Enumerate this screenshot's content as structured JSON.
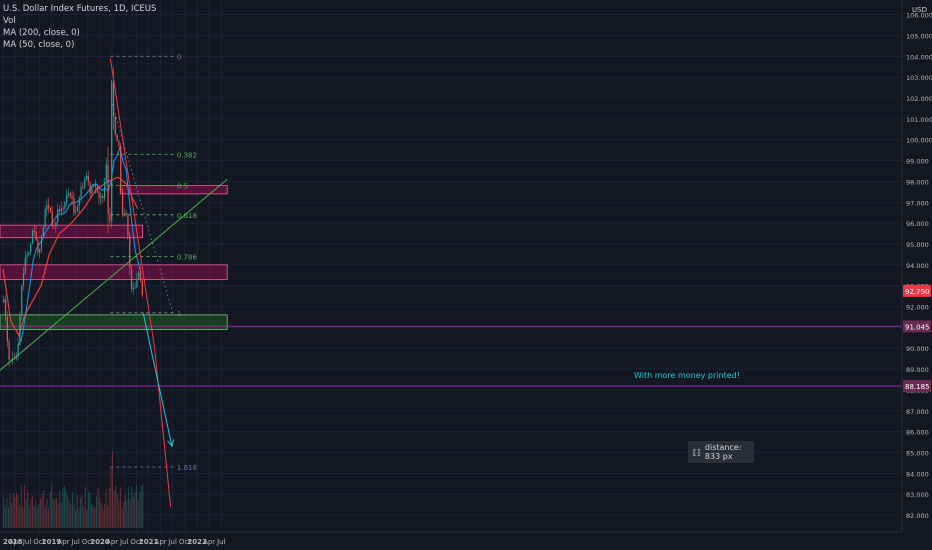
{
  "legend": {
    "title": "U.S. Dollar Index Futures, 1D, ICEUS",
    "vol": "Vol",
    "ma200": "MA (200, close, 0)",
    "ma50": "MA (50, close, 0)"
  },
  "currency_label": "USD",
  "annotation_text": "With more money printed!",
  "tooltip_text": "distance: 833 px",
  "colors": {
    "background": "#131722",
    "grid": "#1f2a44",
    "up": "#26a69a",
    "down": "#ef5350",
    "ma200": "#e53935",
    "ma50": "#2196f3",
    "red_zone": "#880e4f",
    "green_zone": "#1b5e20",
    "trend_green": "#4caf50",
    "trend_red": "#f23645",
    "projection": "#26c6da",
    "fib": "#4caf50",
    "purple": "#9c27b0"
  },
  "chart_data": {
    "type": "candlestick",
    "title": "U.S. Dollar Index Futures, 1D, ICEUS",
    "ylim": [
      81.4,
      106.4
    ],
    "y_ticks": [
      "82.000",
      "83.000",
      "84.000",
      "85.000",
      "86.000",
      "87.000",
      "88.000",
      "89.000",
      "90.000",
      "91.000",
      "92.000",
      "93.000",
      "94.000",
      "95.000",
      "96.000",
      "97.000",
      "98.000",
      "99.000",
      "100.000",
      "101.000",
      "102.000",
      "103.000",
      "104.000",
      "105.000",
      "106.000"
    ],
    "x_ticks": [
      "2018",
      "Apr",
      "Jul",
      "Oct",
      "2019",
      "Apr",
      "Jul",
      "Oct",
      "2020",
      "Apr",
      "Jul",
      "Oct",
      "2021",
      "Apr",
      "Jul",
      "Oct",
      "2022",
      "Apr",
      "Jul"
    ],
    "price_path": [
      [
        "2018-01-02",
        92.2
      ],
      [
        "2018-01-20",
        91.0
      ],
      [
        "2018-02-15",
        89.2
      ],
      [
        "2018-03-15",
        89.6
      ],
      [
        "2018-04-15",
        89.8
      ],
      [
        "2018-05-10",
        92.5
      ],
      [
        "2018-06-15",
        94.5
      ],
      [
        "2018-07-15",
        94.6
      ],
      [
        "2018-08-15",
        96.0
      ],
      [
        "2018-09-15",
        94.6
      ],
      [
        "2018-10-15",
        95.3
      ],
      [
        "2018-11-15",
        96.8
      ],
      [
        "2018-12-15",
        96.8
      ],
      [
        "2019-01-15",
        95.6
      ],
      [
        "2019-02-15",
        96.7
      ],
      [
        "2019-03-15",
        96.6
      ],
      [
        "2019-04-15",
        97.1
      ],
      [
        "2019-05-15",
        97.6
      ],
      [
        "2019-06-15",
        96.5
      ],
      [
        "2019-07-15",
        97.0
      ],
      [
        "2019-08-15",
        97.8
      ],
      [
        "2019-09-15",
        98.3
      ],
      [
        "2019-10-15",
        97.6
      ],
      [
        "2019-11-15",
        98.1
      ],
      [
        "2019-12-15",
        97.0
      ],
      [
        "2020-01-15",
        97.3
      ],
      [
        "2020-02-15",
        99.0
      ],
      [
        "2020-03-09",
        95.0
      ],
      [
        "2020-03-19",
        103.9
      ],
      [
        "2020-04-15",
        100.0
      ],
      [
        "2020-05-15",
        100.2
      ],
      [
        "2020-06-10",
        96.3
      ],
      [
        "2020-07-15",
        96.3
      ],
      [
        "2020-08-15",
        93.0
      ],
      [
        "2020-09-15",
        93.0
      ],
      [
        "2020-10-15",
        93.7
      ],
      [
        "2020-11-15",
        92.6
      ]
    ],
    "ma200_path": [
      [
        "2018-01-02",
        93.8
      ],
      [
        "2018-03-01",
        91.3
      ],
      [
        "2018-05-01",
        90.6
      ],
      [
        "2018-06-15",
        91.6
      ],
      [
        "2018-08-15",
        92.3
      ],
      [
        "2018-10-15",
        93.0
      ],
      [
        "2018-12-15",
        94.5
      ],
      [
        "2019-03-01",
        95.5
      ],
      [
        "2019-06-01",
        96.0
      ],
      [
        "2019-09-01",
        96.7
      ],
      [
        "2019-12-01",
        97.6
      ],
      [
        "2020-03-01",
        98.0
      ],
      [
        "2020-05-15",
        98.2
      ],
      [
        "2020-07-15",
        97.9
      ],
      [
        "2020-09-01",
        97.2
      ],
      [
        "2020-10-10",
        96.7
      ]
    ],
    "series": [
      {
        "name": "MA (200, close, 0)",
        "color": "#e53935"
      },
      {
        "name": "MA (50, close, 0)",
        "color": "#2196f3"
      },
      {
        "name": "Vol"
      }
    ],
    "price_labels": [
      {
        "value": 92.75,
        "text": "92.750",
        "color": "#f23645"
      },
      {
        "value": 91.045,
        "text": "91.045",
        "color": "#6a2a52"
      },
      {
        "value": 88.185,
        "text": "88.185",
        "color": "#6a2a52"
      }
    ],
    "fib_levels": [
      {
        "label": "0",
        "value": 104.0
      },
      {
        "label": "0.382",
        "value": 99.3
      },
      {
        "label": "0.5",
        "value": 97.8
      },
      {
        "label": "0.618",
        "value": 96.4
      },
      {
        "label": "0.786",
        "value": 94.4
      },
      {
        "label": "1",
        "value": 91.7
      },
      {
        "label": "1.618",
        "value": 84.3
      }
    ],
    "zones": [
      {
        "type": "resistance",
        "y_top": 95.9,
        "y_bottom": 95.3,
        "x_start": "2017-12-01",
        "x_end": "2020-11-15"
      },
      {
        "type": "resistance",
        "y_top": 94.0,
        "y_bottom": 93.3,
        "x_start": "2017-12-01",
        "x_end": "2022-08-15"
      },
      {
        "type": "resistance",
        "y_top": 97.8,
        "y_bottom": 97.4,
        "x_start": "2020-06-01",
        "x_end": "2022-08-15"
      },
      {
        "type": "support",
        "y_top": 91.6,
        "y_bottom": 90.9,
        "x_start": "2017-12-01",
        "x_end": "2022-08-15"
      }
    ],
    "horizontal_lines": [
      {
        "value": 88.185,
        "color": "#9c27b0"
      },
      {
        "value": 91.05,
        "color": "#9c27b0"
      }
    ],
    "trendlines": [
      {
        "color": "#4caf50",
        "points": [
          [
            "2017-12-01",
            88.9
          ],
          [
            "2022-08-15",
            98.1
          ]
        ]
      },
      {
        "color": "#f23645",
        "points": [
          [
            "2020-03-19",
            103.9
          ],
          [
            "2021-02-15",
            90.0
          ],
          [
            "2021-06-15",
            82.4
          ]
        ]
      },
      {
        "color": "#26c6da",
        "style": "arrow",
        "points": [
          [
            "2020-11-20",
            91.7
          ],
          [
            "2021-06-25",
            85.3
          ]
        ]
      },
      {
        "color": "#787b86",
        "style": "dotted",
        "points": [
          [
            "2020-03-25",
            101.9
          ],
          [
            "2021-07-01",
            91.7
          ]
        ]
      }
    ],
    "annotations": [
      {
        "text": "With more money printed!",
        "x": "2021-01-01",
        "y": 89.0
      },
      {
        "text": "distance: 833 px",
        "x": "2021-06-01",
        "y": 84.9
      }
    ],
    "volume": {
      "low_baseline": "2018-01 to 2020-11",
      "spike": "2020-03"
    }
  }
}
